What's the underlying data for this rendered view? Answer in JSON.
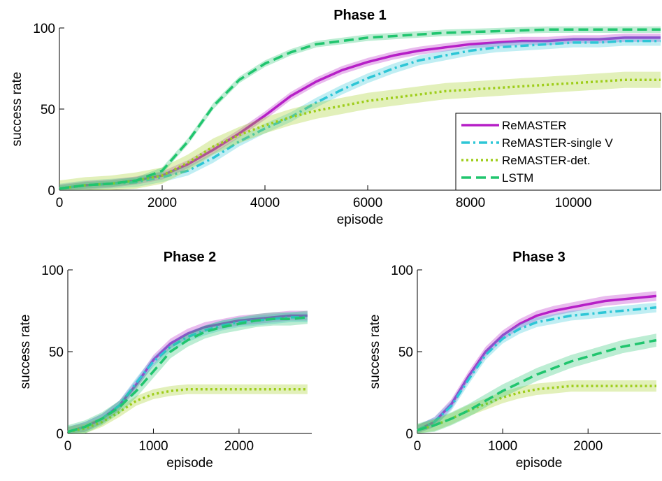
{
  "chart_data": [
    {
      "type": "line",
      "title": "Phase 1",
      "xlabel": "episode",
      "ylabel": "success rate",
      "xlim": [
        0,
        11700
      ],
      "ylim": [
        0,
        100
      ],
      "xticks": [
        0,
        2000,
        4000,
        6000,
        8000,
        10000
      ],
      "yticks": [
        0,
        50,
        100
      ],
      "grid": false,
      "legend": "bottom-right",
      "x": [
        0,
        500,
        1000,
        1500,
        2000,
        2500,
        3000,
        3500,
        4000,
        4500,
        5000,
        5500,
        6000,
        6500,
        7000,
        7500,
        8000,
        8500,
        9000,
        9500,
        10000,
        10500,
        11000,
        11700
      ],
      "series": [
        {
          "name": "ReMASTER",
          "color": "#b61fc7",
          "dash": "solid",
          "band": 2.5,
          "values": [
            1,
            3,
            4,
            6,
            9,
            16,
            25,
            35,
            46,
            58,
            67,
            74,
            79,
            83,
            86,
            88,
            90,
            91,
            92,
            92,
            93,
            93,
            94,
            94
          ]
        },
        {
          "name": "ReMASTER-single V",
          "color": "#2dc6d6",
          "dash": "dashdot",
          "band": 3,
          "values": [
            1,
            3,
            4,
            5,
            8,
            12,
            20,
            30,
            38,
            45,
            54,
            62,
            69,
            75,
            80,
            83,
            86,
            88,
            89,
            90,
            91,
            91,
            92,
            92
          ]
        },
        {
          "name": "ReMASTER-det.",
          "color": "#9ecd1a",
          "dash": "dotted",
          "band": 5,
          "values": [
            1,
            3,
            4,
            6,
            9,
            17,
            27,
            34,
            40,
            45,
            49,
            52,
            55,
            57,
            59,
            61,
            62,
            63,
            64,
            65,
            66,
            67,
            68,
            68
          ]
        },
        {
          "name": "LSTM",
          "color": "#20c56e",
          "dash": "dashed",
          "band": 2,
          "values": [
            1,
            3,
            4,
            6,
            12,
            30,
            52,
            68,
            78,
            85,
            90,
            92,
            94,
            95,
            96,
            97,
            97.5,
            98,
            98.5,
            99,
            99,
            99,
            99,
            99
          ]
        }
      ]
    },
    {
      "type": "line",
      "title": "Phase 2",
      "xlabel": "episode",
      "ylabel": "success rate",
      "xlim": [
        0,
        2850
      ],
      "ylim": [
        0,
        100
      ],
      "xticks": [
        0,
        1000,
        2000
      ],
      "yticks": [
        0,
        50,
        100
      ],
      "grid": false,
      "x": [
        0,
        200,
        400,
        600,
        800,
        1000,
        1200,
        1400,
        1600,
        1800,
        2000,
        2200,
        2400,
        2600,
        2800
      ],
      "series": [
        {
          "name": "ReMASTER",
          "color": "#b61fc7",
          "dash": "solid",
          "band": 3,
          "values": [
            1,
            4,
            9,
            17,
            30,
            45,
            55,
            61,
            65,
            67,
            69,
            70,
            71,
            72,
            72
          ]
        },
        {
          "name": "ReMASTER-single V",
          "color": "#2dc6d6",
          "dash": "dashdot",
          "band": 3,
          "values": [
            1,
            4,
            9,
            17,
            31,
            44,
            53,
            59,
            63,
            66,
            68,
            69,
            70,
            71,
            71
          ]
        },
        {
          "name": "ReMASTER-det.",
          "color": "#9ecd1a",
          "dash": "dotted",
          "band": 3,
          "values": [
            1,
            3,
            7,
            13,
            20,
            24,
            26,
            27,
            27,
            27,
            27,
            27,
            27,
            27,
            27
          ]
        },
        {
          "name": "LSTM",
          "color": "#20c56e",
          "dash": "dashed",
          "band": 4,
          "values": [
            1,
            4,
            9,
            16,
            26,
            38,
            50,
            57,
            62,
            65,
            67,
            69,
            70,
            70,
            71
          ]
        }
      ]
    },
    {
      "type": "line",
      "title": "Phase 3",
      "xlabel": "episode",
      "ylabel": "success rate",
      "xlim": [
        0,
        2850
      ],
      "ylim": [
        0,
        100
      ],
      "xticks": [
        0,
        1000,
        2000
      ],
      "yticks": [
        0,
        50,
        100
      ],
      "grid": false,
      "x": [
        0,
        200,
        400,
        600,
        800,
        1000,
        1200,
        1400,
        1600,
        1800,
        2000,
        2200,
        2400,
        2600,
        2800
      ],
      "series": [
        {
          "name": "ReMASTER",
          "color": "#b61fc7",
          "dash": "solid",
          "band": 3,
          "values": [
            2,
            7,
            18,
            35,
            50,
            60,
            67,
            72,
            75,
            77,
            79,
            81,
            82,
            83,
            84
          ]
        },
        {
          "name": "ReMASTER-single V",
          "color": "#2dc6d6",
          "dash": "dashdot",
          "band": 3,
          "values": [
            2,
            7,
            17,
            33,
            48,
            58,
            64,
            68,
            70,
            72,
            73,
            74,
            75,
            76,
            77
          ]
        },
        {
          "name": "ReMASTER-det.",
          "color": "#9ecd1a",
          "dash": "dotted",
          "band": 3.5,
          "values": [
            2,
            5,
            9,
            14,
            18,
            22,
            25,
            27,
            28,
            29,
            29,
            29,
            29,
            29,
            29
          ]
        },
        {
          "name": "LSTM",
          "color": "#20c56e",
          "dash": "dashed",
          "band": 4,
          "values": [
            2,
            5,
            9,
            14,
            20,
            26,
            31,
            36,
            40,
            44,
            47,
            50,
            53,
            55,
            57
          ]
        }
      ]
    }
  ]
}
